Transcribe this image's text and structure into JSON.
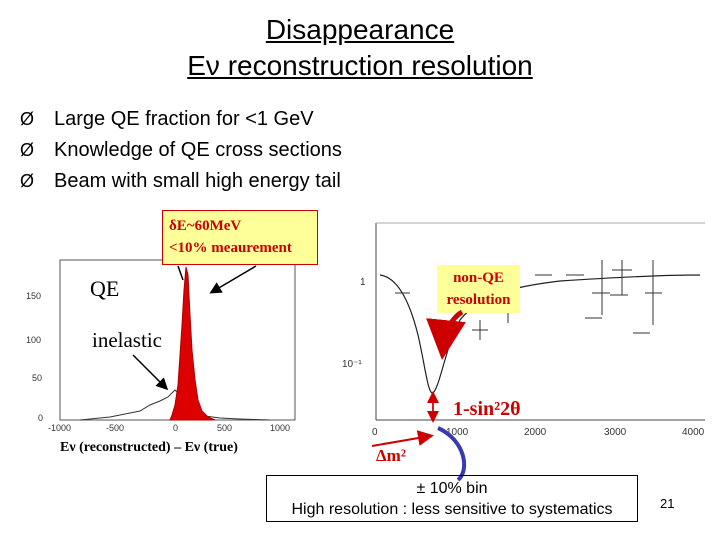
{
  "slide": {
    "title_line1": "Disappearance",
    "title_line2": "Eν reconstruction resolution",
    "bullets": [
      "Large QE fraction for <1 GeV",
      "Knowledge of QE cross sections",
      "Beam with small high energy tail"
    ],
    "callout_resolution": {
      "line1": "δE~60MeV",
      "line2": "<10% meaurement"
    },
    "label_qe": "QE",
    "label_inelastic": "inelastic",
    "label_nonqe_line1": "non-QE",
    "label_nonqe_line2": "resolution",
    "label_sin": "1-sin²2θ",
    "label_dm2": "Δm²",
    "xaxis_left": "Eν (reconstructed) – Eν (true)",
    "bottom_box_line1": "± 10% bin",
    "bottom_box_line2": "High resolution : less sensitive to systematics",
    "page_number": "21",
    "bullet_marker": "Ø",
    "colors": {
      "accent": "#cc0000",
      "callout_bg": "#ffff99",
      "link_blue": "#3a3ab0"
    }
  },
  "histogram": {
    "y_ticks": [
      "150",
      "100",
      "50",
      "0"
    ],
    "x_ticks": [
      "-1000",
      "-500",
      "0",
      "500",
      "1000"
    ]
  },
  "right_plot": {
    "y_ticks": [
      "1",
      "10⁻¹"
    ],
    "x_ticks": [
      "0",
      "1000",
      "2000",
      "3000",
      "4000"
    ]
  }
}
